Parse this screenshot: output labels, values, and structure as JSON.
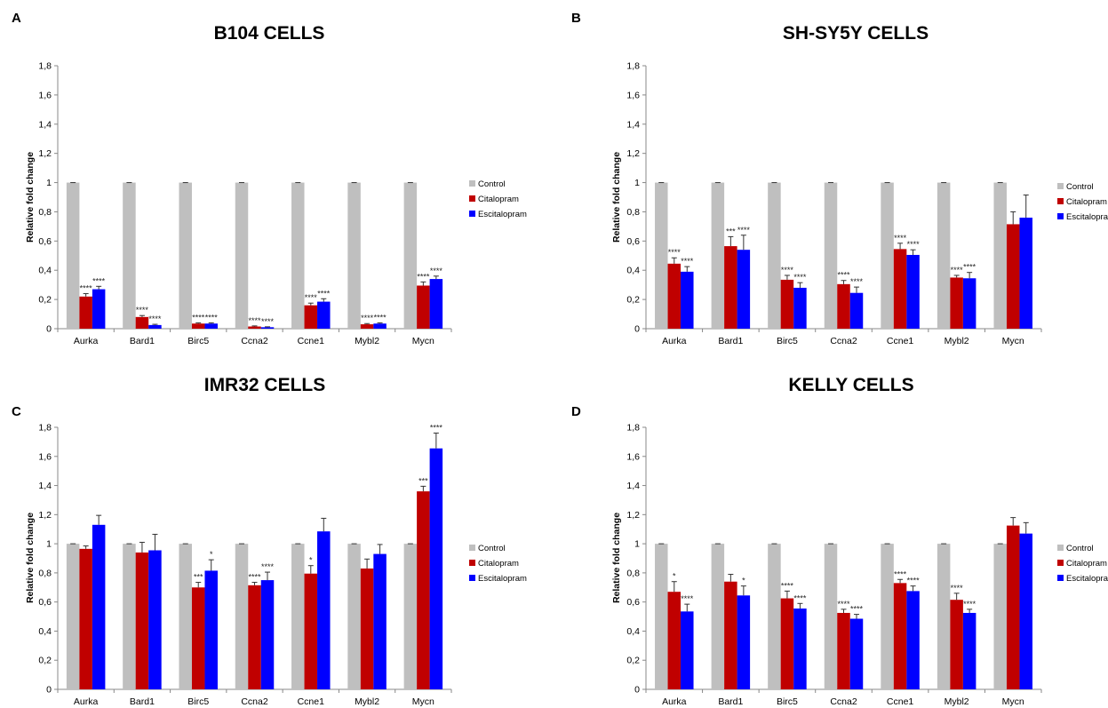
{
  "colors": {
    "control": "#bfbfbf",
    "citalopram": "#c00000",
    "escitalopram": "#0000ff"
  },
  "chart_data": [
    {
      "panel": "A",
      "type": "bar",
      "title": "B104 CELLS",
      "ylabel": "Relative fold change",
      "xlabel": "",
      "ylim": [
        0,
        1.8
      ],
      "yticks": [
        "0",
        "0,2",
        "0,4",
        "0,6",
        "0,8",
        "1",
        "1,2",
        "1,4",
        "1,6",
        "1,8"
      ],
      "legend": "right",
      "grid": false,
      "categories": [
        "Aurka",
        "Bard1",
        "Birc5",
        "Ccna2",
        "Ccne1",
        "Mybl2",
        "Mycn"
      ],
      "series": [
        {
          "name": "Control",
          "values": [
            1,
            1,
            1,
            1,
            1,
            1,
            1
          ],
          "errors": [
            0,
            0,
            0,
            0,
            0,
            0,
            0
          ],
          "sig": [
            "",
            "",
            "",
            "",
            "",
            "",
            ""
          ]
        },
        {
          "name": "Citalopram",
          "values": [
            0.22,
            0.08,
            0.035,
            0.015,
            0.16,
            0.03,
            0.295
          ],
          "errors": [
            0.02,
            0.01,
            0.005,
            0.004,
            0.015,
            0.005,
            0.025
          ],
          "sig": [
            "****",
            "****",
            "****",
            "****",
            "****",
            "****",
            "****"
          ]
        },
        {
          "name": "Escitalopram",
          "values": [
            0.27,
            0.025,
            0.035,
            0.01,
            0.185,
            0.035,
            0.34
          ],
          "errors": [
            0.02,
            0.005,
            0.005,
            0.003,
            0.02,
            0.005,
            0.02
          ],
          "sig": [
            "****",
            "****",
            "****",
            "****",
            "****",
            "****",
            "****"
          ]
        }
      ]
    },
    {
      "panel": "B",
      "type": "bar",
      "title": "SH-SY5Y CELLS",
      "ylabel": "Relative fold change",
      "xlabel": "",
      "ylim": [
        0,
        1.8
      ],
      "yticks": [
        "0",
        "0,2",
        "0,4",
        "0,6",
        "0,8",
        "1",
        "1,2",
        "1,4",
        "1,6",
        "1,8"
      ],
      "legend": "right",
      "grid": false,
      "categories": [
        "Aurka",
        "Bard1",
        "Birc5",
        "Ccna2",
        "Ccne1",
        "Mybl2",
        "Mycn"
      ],
      "series": [
        {
          "name": "Control",
          "values": [
            1,
            1,
            1,
            1,
            1,
            1,
            1
          ],
          "errors": [
            0,
            0,
            0,
            0,
            0,
            0,
            0
          ],
          "sig": [
            "",
            "",
            "",
            "",
            "",
            "",
            ""
          ]
        },
        {
          "name": "Citalopram",
          "values": [
            0.445,
            0.565,
            0.335,
            0.305,
            0.545,
            0.35,
            0.715
          ],
          "errors": [
            0.04,
            0.065,
            0.03,
            0.025,
            0.04,
            0.015,
            0.085
          ],
          "sig": [
            "****",
            "***",
            "****",
            "****",
            "****",
            "****",
            ""
          ]
        },
        {
          "name": "Escitalopram",
          "values": [
            0.39,
            0.54,
            0.28,
            0.245,
            0.505,
            0.345,
            0.76
          ],
          "errors": [
            0.035,
            0.1,
            0.035,
            0.04,
            0.035,
            0.04,
            0.155
          ],
          "sig": [
            "****",
            "****",
            "****",
            "****",
            "****",
            "****",
            ""
          ]
        }
      ]
    },
    {
      "panel": "C",
      "type": "bar",
      "title": "IMR32 CELLS",
      "ylabel": "Relative fold change",
      "xlabel": "",
      "ylim": [
        0,
        1.8
      ],
      "yticks": [
        "0",
        "0,2",
        "0,4",
        "0,6",
        "0,8",
        "1",
        "1,2",
        "1,4",
        "1,6",
        "1,8"
      ],
      "legend": "right",
      "grid": false,
      "categories": [
        "Aurka",
        "Bard1",
        "Birc5",
        "Ccna2",
        "Ccne1",
        "Mybl2",
        "Mycn"
      ],
      "series": [
        {
          "name": "Control",
          "values": [
            1,
            1,
            1,
            1,
            1,
            1,
            1
          ],
          "errors": [
            0,
            0,
            0,
            0,
            0,
            0,
            0
          ],
          "sig": [
            "",
            "",
            "",
            "",
            "",
            "",
            ""
          ]
        },
        {
          "name": "Citalopram",
          "values": [
            0.965,
            0.94,
            0.7,
            0.715,
            0.795,
            0.83,
            1.36
          ],
          "errors": [
            0.02,
            0.07,
            0.035,
            0.02,
            0.055,
            0.065,
            0.035
          ],
          "sig": [
            "",
            "",
            "***",
            "****",
            "*",
            "",
            "***"
          ]
        },
        {
          "name": "Escitalopram",
          "values": [
            1.13,
            0.955,
            0.815,
            0.75,
            1.085,
            0.93,
            1.655
          ],
          "errors": [
            0.065,
            0.11,
            0.075,
            0.055,
            0.09,
            0.065,
            0.105
          ],
          "sig": [
            "",
            "",
            "*",
            "****",
            "",
            "",
            "****"
          ]
        }
      ]
    },
    {
      "panel": "D",
      "type": "bar",
      "title": "KELLY CELLS",
      "ylabel": "Relative fold change",
      "xlabel": "",
      "ylim": [
        0,
        1.8
      ],
      "yticks": [
        "0",
        "0,2",
        "0,4",
        "0,6",
        "0,8",
        "1",
        "1,2",
        "1,4",
        "1,6",
        "1,8"
      ],
      "legend": "right",
      "grid": false,
      "categories": [
        "Aurka",
        "Bard1",
        "Birc5",
        "Ccna2",
        "Ccne1",
        "Mybl2",
        "Mycn"
      ],
      "series": [
        {
          "name": "Control",
          "values": [
            1,
            1,
            1,
            1,
            1,
            1,
            1
          ],
          "errors": [
            0,
            0,
            0,
            0,
            0,
            0,
            0
          ],
          "sig": [
            "",
            "",
            "",
            "",
            "",
            "",
            ""
          ]
        },
        {
          "name": "Citalopram",
          "values": [
            0.67,
            0.74,
            0.625,
            0.525,
            0.73,
            0.615,
            1.125
          ],
          "errors": [
            0.07,
            0.05,
            0.05,
            0.025,
            0.025,
            0.045,
            0.055
          ],
          "sig": [
            "*",
            "",
            "****",
            "****",
            "****",
            "****",
            ""
          ]
        },
        {
          "name": "Escitalopram",
          "values": [
            0.535,
            0.645,
            0.555,
            0.485,
            0.675,
            0.525,
            1.07
          ],
          "errors": [
            0.05,
            0.065,
            0.035,
            0.03,
            0.035,
            0.025,
            0.075
          ],
          "sig": [
            "****",
            "*",
            "****",
            "****",
            "****",
            "****",
            ""
          ]
        }
      ]
    }
  ]
}
